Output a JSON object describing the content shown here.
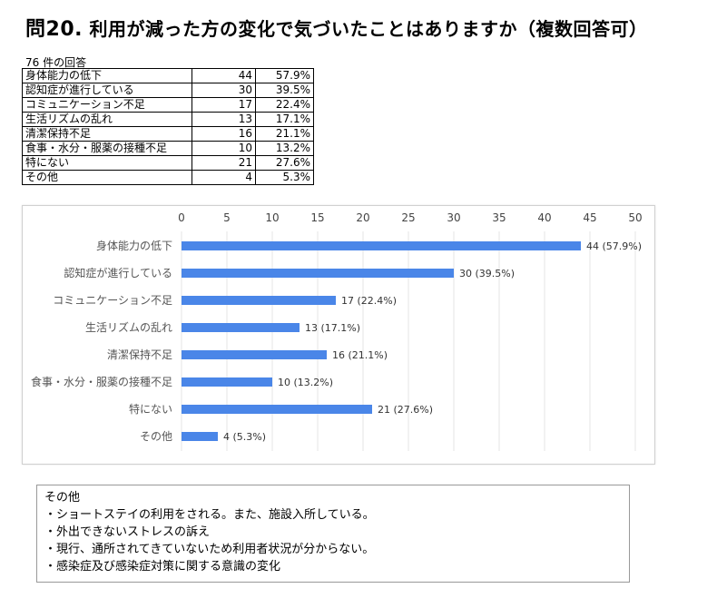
{
  "title": {
    "prefix": "問",
    "number": "20.",
    "text": "利用が減った方の変化で気づいたことはありますか（複数回答可）"
  },
  "response_count": "76 件の回答",
  "table": [
    {
      "label": "身体能力の低下",
      "count": "44",
      "pct": "57.9%"
    },
    {
      "label": "認知症が進行している",
      "count": "30",
      "pct": "39.5%"
    },
    {
      "label": "コミュニケーション不足",
      "count": "17",
      "pct": "22.4%"
    },
    {
      "label": "生活リズムの乱れ",
      "count": "13",
      "pct": "17.1%"
    },
    {
      "label": "清潔保持不足",
      "count": "16",
      "pct": "21.1%"
    },
    {
      "label": "食事・水分・服薬の接種不足",
      "count": "10",
      "pct": "13.2%"
    },
    {
      "label": "特にない",
      "count": "21",
      "pct": "27.6%"
    },
    {
      "label": "その他",
      "count": "4",
      "pct": "5.3%"
    }
  ],
  "chart_data": {
    "type": "bar",
    "orientation": "horizontal",
    "categories": [
      "身体能力の低下",
      "認知症が進行している",
      "コミュニケーション不足",
      "生活リズムの乱れ",
      "清潔保持不足",
      "食事・水分・服薬の接種不足",
      "特にない",
      "その他"
    ],
    "values": [
      44,
      30,
      17,
      13,
      16,
      10,
      21,
      4
    ],
    "data_labels": [
      "44 (57.9%)",
      "30 (39.5%)",
      "17 (22.4%)",
      "13 (17.1%)",
      "16 (21.1%)",
      "10 (13.2%)",
      "21 (27.6%)",
      "4 (5.3%)"
    ],
    "ticks": [
      0,
      5,
      10,
      15,
      20,
      25,
      30,
      35,
      40,
      45,
      50
    ],
    "xlim": [
      0,
      50
    ],
    "axis_position": "top",
    "grid": true,
    "bar_color": "#4a86e8"
  },
  "other": {
    "heading": "その他",
    "items": [
      "・ショートステイの利用をされる。また、施設入所している。",
      "・外出できないストレスの訴え",
      "・現行、通所されてきていないため利用者状況が分からない。",
      "・感染症及び感染症対策に関する意識の変化"
    ]
  }
}
